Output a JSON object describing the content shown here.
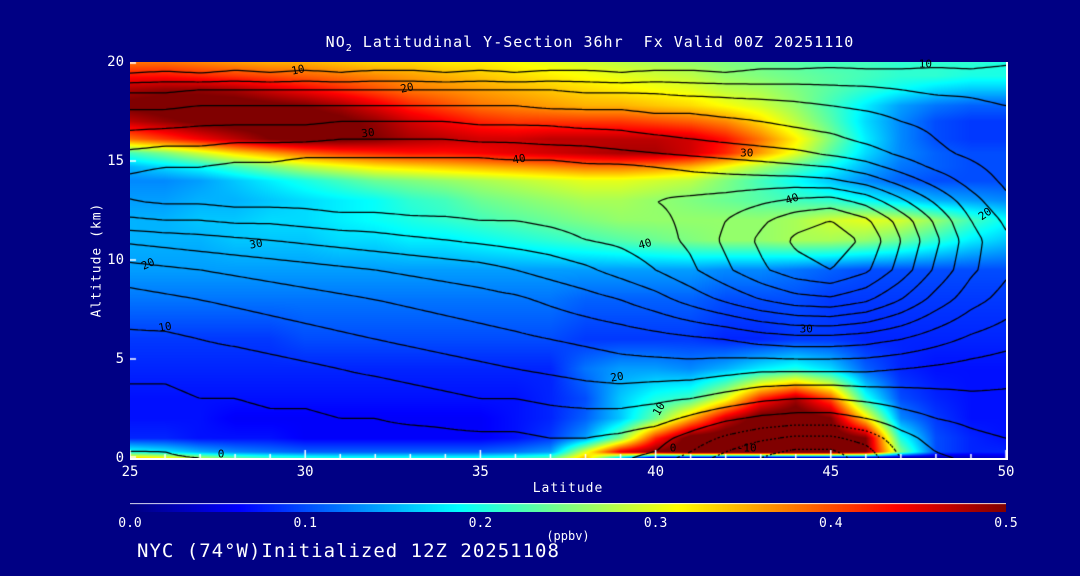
{
  "colors": {
    "background": "#000084",
    "text": "#ffffff",
    "contour_line": "#000000",
    "axis": "#ffffff",
    "colorbar_max": "#800000",
    "colorbar_min": "#000080"
  },
  "title": {
    "chem_prefix": "NO",
    "chem_sub": "2",
    "text": " Latitudinal Y-Section 36hr  Fx Valid 00Z 20251110"
  },
  "footer_text": "NYC (74°W)Initialized 12Z 20251108",
  "x_axis": {
    "label": "Latitude",
    "ticks": [
      25,
      30,
      35,
      40,
      45,
      50
    ],
    "minor_step": 1,
    "range": [
      25,
      50
    ]
  },
  "y_axis": {
    "label": "Altitude (km)",
    "ticks": [
      0,
      5,
      10,
      15,
      20
    ],
    "range": [
      0,
      20
    ]
  },
  "colorbar": {
    "label": "(ppbv)",
    "ticks": [
      "0.0",
      "0.1",
      "0.2",
      "0.3",
      "0.4",
      "0.5"
    ],
    "min": 0.0,
    "max": 0.5,
    "colormap": "jet"
  },
  "chart_data": {
    "type": "heatmap",
    "title": "NO2 Latitudinal Y-Section 36hr  Fx Valid 00Z 20251110",
    "xlabel": "Latitude",
    "ylabel": "Altitude (km)",
    "xlim": [
      25,
      50
    ],
    "ylim": [
      0,
      20
    ],
    "fill_units": "ppbv",
    "fill_scale": [
      0.0,
      0.5
    ],
    "x_lats": [
      25,
      26,
      27,
      28,
      29,
      30,
      31,
      32,
      33,
      34,
      35,
      36,
      37,
      38,
      39,
      40,
      41,
      42,
      43,
      44,
      45,
      46,
      47,
      48,
      49,
      50
    ],
    "y_alts": [
      0,
      0.3,
      1,
      2,
      3,
      4.5,
      6,
      8,
      9.5,
      11,
      12,
      13,
      14,
      14.7,
      15.4,
      16.1,
      17,
      17.8,
      18.6,
      19.3,
      20
    ],
    "fill_values": [
      [
        0.34,
        0.32,
        0.28,
        0.24,
        0.22,
        0.21,
        0.2,
        0.2,
        0.2,
        0.2,
        0.2,
        0.21,
        0.23,
        0.35,
        0.15,
        0.0,
        0.0,
        0.0,
        0.0,
        0.0,
        0.0,
        0.0,
        0.0,
        0.02,
        0.03,
        0.04
      ],
      [
        0.2,
        0.18,
        0.15,
        0.13,
        0.12,
        0.11,
        0.11,
        0.11,
        0.11,
        0.11,
        0.11,
        0.12,
        0.14,
        0.3,
        0.45,
        0.5,
        0.53,
        0.53,
        0.53,
        0.53,
        0.53,
        0.5,
        0.25,
        0.1,
        0.08,
        0.08
      ],
      [
        0.08,
        0.08,
        0.07,
        0.07,
        0.07,
        0.06,
        0.06,
        0.06,
        0.06,
        0.06,
        0.06,
        0.07,
        0.09,
        0.14,
        0.25,
        0.42,
        0.52,
        0.53,
        0.53,
        0.53,
        0.53,
        0.5,
        0.2,
        0.1,
        0.08,
        0.07
      ],
      [
        0.07,
        0.07,
        0.07,
        0.06,
        0.06,
        0.06,
        0.06,
        0.06,
        0.06,
        0.06,
        0.06,
        0.07,
        0.08,
        0.11,
        0.16,
        0.24,
        0.35,
        0.46,
        0.52,
        0.53,
        0.5,
        0.33,
        0.13,
        0.09,
        0.07,
        0.07
      ],
      [
        0.07,
        0.07,
        0.07,
        0.07,
        0.07,
        0.07,
        0.07,
        0.07,
        0.07,
        0.07,
        0.07,
        0.07,
        0.08,
        0.1,
        0.16,
        0.2,
        0.22,
        0.3,
        0.42,
        0.48,
        0.4,
        0.2,
        0.1,
        0.08,
        0.07,
        0.07
      ],
      [
        0.08,
        0.08,
        0.08,
        0.08,
        0.08,
        0.08,
        0.08,
        0.08,
        0.08,
        0.08,
        0.08,
        0.08,
        0.08,
        0.12,
        0.14,
        0.14,
        0.13,
        0.15,
        0.18,
        0.2,
        0.17,
        0.11,
        0.08,
        0.07,
        0.07,
        0.07
      ],
      [
        0.09,
        0.09,
        0.09,
        0.09,
        0.09,
        0.1,
        0.1,
        0.1,
        0.1,
        0.1,
        0.1,
        0.1,
        0.1,
        0.09,
        0.09,
        0.09,
        0.09,
        0.08,
        0.08,
        0.09,
        0.09,
        0.08,
        0.08,
        0.08,
        0.08,
        0.08
      ],
      [
        0.12,
        0.12,
        0.12,
        0.12,
        0.12,
        0.12,
        0.12,
        0.12,
        0.12,
        0.12,
        0.12,
        0.12,
        0.12,
        0.11,
        0.11,
        0.11,
        0.11,
        0.1,
        0.1,
        0.1,
        0.09,
        0.09,
        0.09,
        0.09,
        0.09,
        0.09
      ],
      [
        0.14,
        0.14,
        0.14,
        0.14,
        0.14,
        0.14,
        0.14,
        0.14,
        0.14,
        0.14,
        0.14,
        0.14,
        0.14,
        0.14,
        0.14,
        0.14,
        0.14,
        0.13,
        0.13,
        0.12,
        0.11,
        0.1,
        0.1,
        0.1,
        0.1,
        0.1
      ],
      [
        0.15,
        0.15,
        0.15,
        0.16,
        0.16,
        0.16,
        0.17,
        0.17,
        0.18,
        0.18,
        0.19,
        0.2,
        0.21,
        0.22,
        0.23,
        0.24,
        0.25,
        0.26,
        0.26,
        0.27,
        0.27,
        0.26,
        0.24,
        0.21,
        0.18,
        0.16
      ],
      [
        0.15,
        0.15,
        0.16,
        0.16,
        0.17,
        0.17,
        0.18,
        0.19,
        0.2,
        0.21,
        0.22,
        0.23,
        0.24,
        0.25,
        0.26,
        0.26,
        0.26,
        0.26,
        0.26,
        0.27,
        0.29,
        0.3,
        0.29,
        0.26,
        0.22,
        0.19
      ],
      [
        0.14,
        0.14,
        0.15,
        0.15,
        0.16,
        0.17,
        0.18,
        0.19,
        0.21,
        0.22,
        0.24,
        0.25,
        0.26,
        0.27,
        0.27,
        0.26,
        0.25,
        0.24,
        0.23,
        0.22,
        0.21,
        0.19,
        0.17,
        0.15,
        0.14,
        0.13
      ],
      [
        0.13,
        0.13,
        0.14,
        0.16,
        0.18,
        0.2,
        0.22,
        0.24,
        0.25,
        0.26,
        0.27,
        0.28,
        0.29,
        0.3,
        0.3,
        0.29,
        0.28,
        0.25,
        0.22,
        0.19,
        0.16,
        0.13,
        0.11,
        0.1,
        0.1,
        0.1
      ],
      [
        0.15,
        0.17,
        0.19,
        0.22,
        0.25,
        0.28,
        0.3,
        0.32,
        0.33,
        0.34,
        0.35,
        0.36,
        0.37,
        0.38,
        0.38,
        0.37,
        0.35,
        0.31,
        0.27,
        0.23,
        0.19,
        0.15,
        0.12,
        0.11,
        0.1,
        0.1
      ],
      [
        0.22,
        0.25,
        0.29,
        0.33,
        0.36,
        0.39,
        0.41,
        0.42,
        0.43,
        0.43,
        0.44,
        0.45,
        0.46,
        0.47,
        0.48,
        0.48,
        0.46,
        0.42,
        0.36,
        0.3,
        0.23,
        0.17,
        0.13,
        0.11,
        0.1,
        0.1
      ],
      [
        0.38,
        0.41,
        0.44,
        0.47,
        0.5,
        0.51,
        0.51,
        0.5,
        0.48,
        0.47,
        0.46,
        0.46,
        0.47,
        0.47,
        0.47,
        0.47,
        0.46,
        0.43,
        0.38,
        0.32,
        0.25,
        0.18,
        0.13,
        0.1,
        0.09,
        0.09
      ],
      [
        0.47,
        0.49,
        0.51,
        0.52,
        0.52,
        0.52,
        0.51,
        0.49,
        0.46,
        0.44,
        0.42,
        0.41,
        0.41,
        0.41,
        0.41,
        0.4,
        0.39,
        0.37,
        0.33,
        0.28,
        0.23,
        0.17,
        0.13,
        0.1,
        0.09,
        0.09
      ],
      [
        0.51,
        0.52,
        0.52,
        0.52,
        0.51,
        0.5,
        0.48,
        0.45,
        0.42,
        0.4,
        0.38,
        0.37,
        0.36,
        0.35,
        0.35,
        0.34,
        0.33,
        0.31,
        0.29,
        0.26,
        0.22,
        0.18,
        0.14,
        0.12,
        0.11,
        0.11
      ],
      [
        0.48,
        0.49,
        0.49,
        0.48,
        0.46,
        0.44,
        0.42,
        0.4,
        0.38,
        0.37,
        0.36,
        0.35,
        0.34,
        0.33,
        0.32,
        0.31,
        0.3,
        0.28,
        0.27,
        0.25,
        0.23,
        0.21,
        0.19,
        0.17,
        0.16,
        0.16
      ],
      [
        0.43,
        0.43,
        0.42,
        0.41,
        0.4,
        0.39,
        0.38,
        0.37,
        0.36,
        0.35,
        0.34,
        0.33,
        0.32,
        0.31,
        0.3,
        0.29,
        0.28,
        0.26,
        0.25,
        0.24,
        0.23,
        0.22,
        0.21,
        0.21,
        0.2,
        0.2
      ],
      [
        0.38,
        0.38,
        0.37,
        0.36,
        0.35,
        0.35,
        0.34,
        0.33,
        0.33,
        0.32,
        0.32,
        0.31,
        0.3,
        0.29,
        0.28,
        0.27,
        0.26,
        0.25,
        0.24,
        0.23,
        0.22,
        0.22,
        0.21,
        0.21,
        0.21,
        0.2
      ]
    ],
    "contour_levels_solid": [
      0,
      5,
      10,
      15,
      20,
      25,
      30,
      35,
      40,
      45,
      50,
      55,
      60
    ],
    "contour_levels_dotted": [
      -15,
      -10,
      -5
    ],
    "contour_values": [
      [
        -1,
        -0.5,
        0,
        0.5,
        1,
        1,
        1,
        1,
        2,
        2,
        2,
        2,
        3,
        2,
        1,
        -2,
        -7,
        -12,
        -15,
        -17,
        -17,
        -13,
        -5,
        -1,
        1,
        2
      ],
      [
        0,
        0,
        1,
        1,
        1,
        1,
        2,
        2,
        2,
        2,
        3,
        3,
        3,
        3,
        2,
        0,
        -5,
        -10,
        -14,
        -16,
        -16,
        -12,
        -4,
        0,
        2,
        3
      ],
      [
        1,
        1,
        1,
        2,
        2,
        2,
        3,
        3,
        3,
        4,
        4,
        4,
        5,
        5,
        4,
        2,
        -2,
        -6,
        -9,
        -11,
        -11,
        -8,
        -2,
        2,
        4,
        5
      ],
      [
        2,
        2,
        3,
        3,
        4,
        4,
        5,
        5,
        6,
        6,
        7,
        7,
        8,
        8,
        8,
        7,
        4,
        1,
        -1,
        -2,
        -2,
        0,
        3,
        5,
        6,
        7
      ],
      [
        4,
        4,
        5,
        5,
        6,
        6,
        7,
        7,
        8,
        9,
        10,
        10,
        11,
        12,
        12,
        11,
        10,
        8,
        6,
        5,
        5,
        6,
        7,
        8,
        9,
        9
      ],
      [
        6,
        6,
        7,
        7,
        8,
        9,
        10,
        11,
        12,
        13,
        14,
        15,
        16,
        17,
        18,
        18,
        18,
        17,
        16,
        16,
        16,
        16,
        15,
        14,
        13,
        12
      ],
      [
        9,
        9,
        10,
        11,
        12,
        13,
        14,
        15,
        16,
        17,
        18,
        19,
        20,
        21,
        22,
        23,
        24,
        25,
        27,
        28,
        28,
        27,
        25,
        22,
        19,
        17
      ],
      [
        13,
        14,
        15,
        16,
        17,
        18,
        19,
        20,
        21,
        22,
        23,
        24,
        26,
        28,
        30,
        33,
        37,
        41,
        45,
        48,
        49,
        46,
        40,
        33,
        27,
        23
      ],
      [
        18,
        19,
        20,
        21,
        22,
        23,
        24,
        25,
        26,
        27,
        28,
        30,
        32,
        34,
        37,
        40,
        44,
        49,
        54,
        58,
        60,
        56,
        48,
        39,
        31,
        26
      ],
      [
        26,
        27,
        28,
        29,
        30,
        31,
        32,
        33,
        34,
        35,
        36,
        37,
        38,
        40,
        41,
        43,
        46,
        51,
        56,
        61,
        63,
        59,
        50,
        41,
        32,
        26
      ],
      [
        34,
        35,
        35,
        36,
        36,
        37,
        38,
        38,
        39,
        39,
        40,
        40,
        41,
        42,
        43,
        44,
        46,
        50,
        54,
        58,
        60,
        56,
        48,
        39,
        30,
        24
      ],
      [
        40,
        41,
        41,
        42,
        42,
        42,
        43,
        43,
        43,
        44,
        44,
        44,
        44,
        44,
        44,
        45,
        46,
        47,
        49,
        51,
        52,
        48,
        41,
        34,
        27,
        21
      ],
      [
        41,
        42,
        42,
        43,
        43,
        43,
        44,
        44,
        44,
        44,
        44,
        44,
        44,
        44,
        43,
        43,
        42,
        42,
        42,
        42,
        41,
        38,
        33,
        28,
        23,
        19
      ],
      [
        39,
        40,
        40,
        41,
        41,
        42,
        42,
        42,
        42,
        42,
        42,
        42,
        42,
        41,
        41,
        40,
        39,
        38,
        37,
        36,
        35,
        32,
        28,
        24,
        21,
        18
      ],
      [
        36,
        37,
        37,
        38,
        38,
        39,
        39,
        39,
        39,
        39,
        39,
        38,
        38,
        37,
        36,
        35,
        34,
        33,
        32,
        31,
        29,
        27,
        24,
        21,
        19,
        17
      ],
      [
        32,
        33,
        33,
        34,
        34,
        34,
        35,
        35,
        35,
        35,
        34,
        34,
        33,
        33,
        32,
        31,
        30,
        29,
        28,
        27,
        26,
        24,
        22,
        20,
        18,
        16
      ],
      [
        28,
        28,
        29,
        29,
        29,
        29,
        30,
        30,
        30,
        30,
        29,
        29,
        29,
        28,
        28,
        27,
        27,
        26,
        25,
        24,
        23,
        22,
        20,
        19,
        17,
        16
      ],
      [
        24,
        24,
        25,
        25,
        25,
        25,
        25,
        25,
        25,
        25,
        25,
        25,
        24,
        24,
        24,
        23,
        23,
        22,
        22,
        21,
        20,
        19,
        18,
        17,
        16,
        15
      ],
      [
        19,
        19,
        20,
        20,
        20,
        20,
        20,
        20,
        20,
        20,
        20,
        20,
        20,
        19,
        19,
        19,
        18,
        18,
        17,
        17,
        16,
        16,
        15,
        14,
        14,
        13
      ],
      [
        11,
        12,
        11,
        12,
        11,
        12,
        11,
        12,
        12,
        11,
        12,
        11,
        12,
        12,
        11,
        12,
        12,
        11,
        12,
        12,
        13,
        12,
        12,
        13,
        12,
        13
      ],
      [
        6,
        6,
        6,
        7,
        7,
        7,
        7,
        7,
        7,
        7,
        7,
        7,
        7,
        7,
        7,
        7,
        7,
        7,
        8,
        8,
        8,
        8,
        8,
        8,
        8,
        9
      ]
    ],
    "contour_labels": [
      {
        "text": "10",
        "lat": 29.8,
        "alt": 19.6,
        "rot": -12
      },
      {
        "text": "20",
        "lat": 32.9,
        "alt": 18.7,
        "rot": -12
      },
      {
        "text": "30",
        "lat": 31.8,
        "alt": 16.4,
        "rot": -8
      },
      {
        "text": "40",
        "lat": 36.1,
        "alt": 15.1,
        "rot": -10
      },
      {
        "text": "30",
        "lat": 42.6,
        "alt": 15.4,
        "rot": 0
      },
      {
        "text": "40",
        "lat": 43.9,
        "alt": 13.1,
        "rot": -20
      },
      {
        "text": "10",
        "lat": 47.7,
        "alt": 19.9,
        "rot": 0
      },
      {
        "text": "20",
        "lat": 49.4,
        "alt": 12.3,
        "rot": -35
      },
      {
        "text": "30",
        "lat": 28.6,
        "alt": 10.8,
        "rot": -10
      },
      {
        "text": "20",
        "lat": 25.5,
        "alt": 9.8,
        "rot": -25
      },
      {
        "text": "10",
        "lat": 26.0,
        "alt": 6.6,
        "rot": -10
      },
      {
        "text": "40",
        "lat": 39.7,
        "alt": 10.8,
        "rot": -15
      },
      {
        "text": "30",
        "lat": 44.3,
        "alt": 6.5,
        "rot": 0
      },
      {
        "text": "20",
        "lat": 38.9,
        "alt": 4.1,
        "rot": -10
      },
      {
        "text": "10",
        "lat": 40.1,
        "alt": 2.5,
        "rot": -60
      },
      {
        "text": "0",
        "lat": 40.5,
        "alt": 0.5,
        "rot": 0
      },
      {
        "text": "-10",
        "lat": 42.6,
        "alt": 0.5,
        "rot": 0
      },
      {
        "text": "0",
        "lat": 27.6,
        "alt": 0.2,
        "rot": 0
      }
    ]
  }
}
